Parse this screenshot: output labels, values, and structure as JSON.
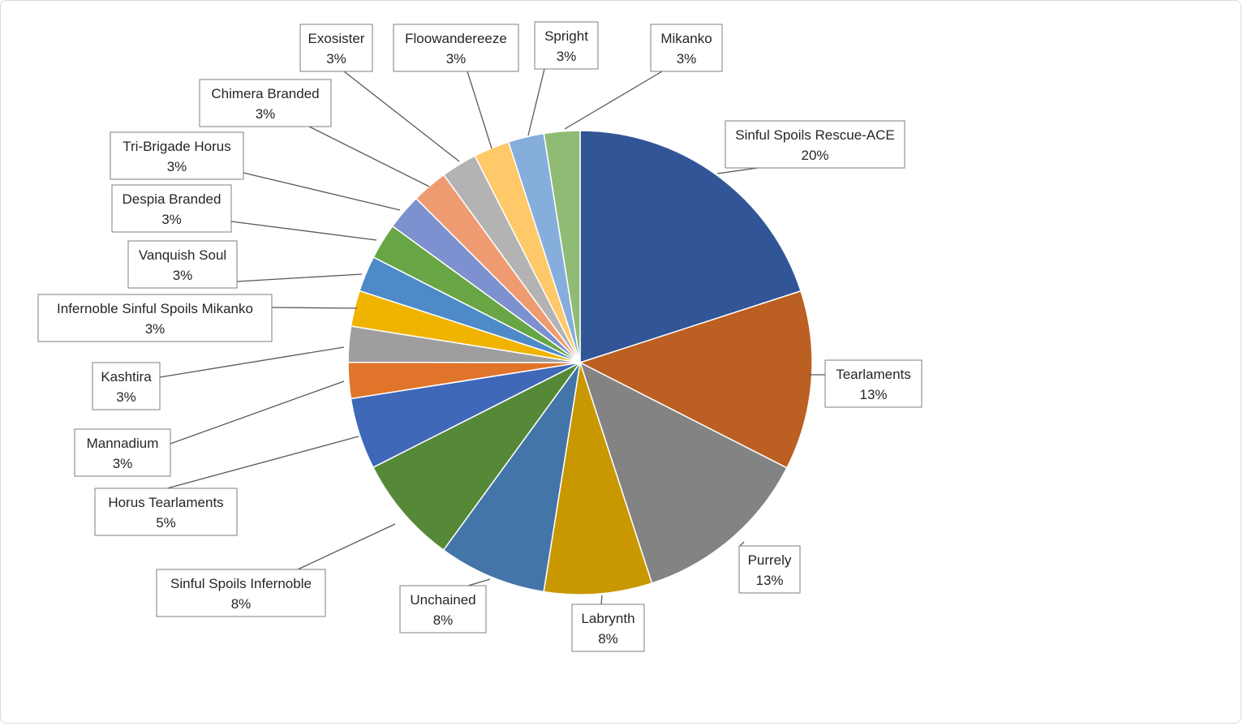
{
  "chart_data": {
    "type": "pie",
    "start_angle_deg": 0,
    "direction": "clockwise",
    "slices": [
      {
        "label": "Sinful Spoils Rescue-ACE",
        "percent_label": "20%",
        "value": 20.5,
        "color": "#325597"
      },
      {
        "label": "Tearlaments",
        "percent_label": "13%",
        "value": 12.8,
        "color": "#bb5f22"
      },
      {
        "label": "Purrely",
        "percent_label": "13%",
        "value": 12.8,
        "color": "#838383"
      },
      {
        "label": "Labrynth",
        "percent_label": "8%",
        "value": 7.7,
        "color": "#c99700"
      },
      {
        "label": "Unchained",
        "percent_label": "8%",
        "value": 7.7,
        "color": "#4375a8"
      },
      {
        "label": "Sinful Spoils Infernoble",
        "percent_label": "8%",
        "value": 7.7,
        "color": "#558837"
      },
      {
        "label": "Horus Tearlaments",
        "percent_label": "5%",
        "value": 5.1,
        "color": "#3f68b9"
      },
      {
        "label": "Mannadium",
        "percent_label": "3%",
        "value": 2.56,
        "color": "#e0742a"
      },
      {
        "label": "Kashtira",
        "percent_label": "3%",
        "value": 2.56,
        "color": "#9e9e9e"
      },
      {
        "label": "Infernoble Sinful Spoils Mikanko",
        "percent_label": "3%",
        "value": 2.56,
        "color": "#f0b400"
      },
      {
        "label": "Vanquish Soul",
        "percent_label": "3%",
        "value": 2.56,
        "color": "#4e8ac8"
      },
      {
        "label": "Despia Branded",
        "percent_label": "3%",
        "value": 2.56,
        "color": "#68a544"
      },
      {
        "label": "Tri-Brigade Horus",
        "percent_label": "3%",
        "value": 2.56,
        "color": "#7d90cf"
      },
      {
        "label": "Chimera Branded",
        "percent_label": "3%",
        "value": 2.56,
        "color": "#ef9b72"
      },
      {
        "label": "Exosister",
        "percent_label": "3%",
        "value": 2.56,
        "color": "#b3b3b3"
      },
      {
        "label": "Floowandereeze",
        "percent_label": "3%",
        "value": 2.56,
        "color": "#ffc868"
      },
      {
        "label": "Spright",
        "percent_label": "3%",
        "value": 2.56,
        "color": "#86aedd"
      },
      {
        "label": "Mikanko",
        "percent_label": "3%",
        "value": 2.56,
        "color": "#90bb74"
      }
    ]
  }
}
